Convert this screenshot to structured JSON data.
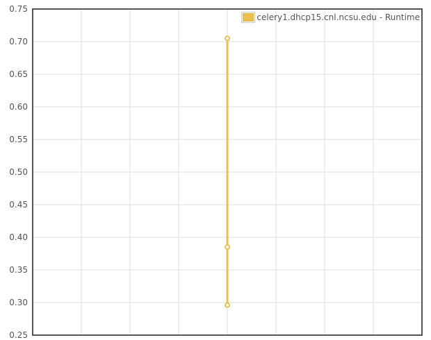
{
  "chart_data": {
    "type": "line",
    "title": "",
    "xlabel": "",
    "ylabel": "",
    "ylim": [
      0.25,
      0.75
    ],
    "yticks": [
      "0.75",
      "0.70",
      "0.65",
      "0.60",
      "0.55",
      "0.50",
      "0.45",
      "0.40",
      "0.35",
      "0.30",
      "0.25"
    ],
    "x_tick_labels_shown": false,
    "grid": true,
    "legend": "top-right",
    "series": [
      {
        "name": "celery1.dhcp15.cnl.ncsu.edu - Runtime",
        "color": "#ebc04f",
        "points": [
          {
            "x": 0,
            "y": 0.705
          },
          {
            "x": 0,
            "y": 0.385
          },
          {
            "x": 0,
            "y": 0.296
          }
        ]
      }
    ]
  }
}
